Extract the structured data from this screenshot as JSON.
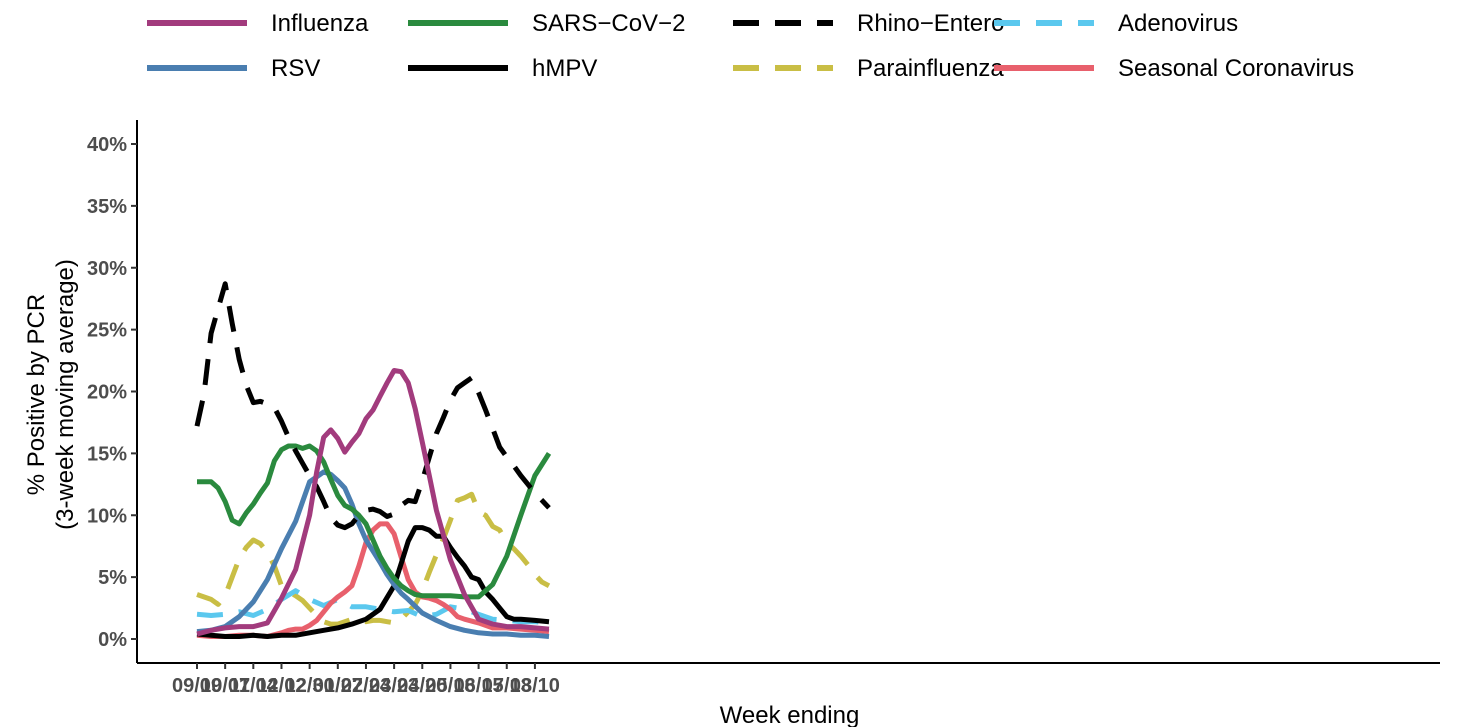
{
  "chart_data": {
    "type": "line",
    "title": "",
    "xlabel": "Week ending",
    "ylabel": "% Positive by PCR",
    "ylabel_sub": "(3-week moving average)",
    "x_ticks": [
      "09/09",
      "10/07",
      "11/04",
      "12/02",
      "12/30",
      "01/27",
      "02/24",
      "03/23",
      "04/20",
      "05/18",
      "06/15",
      "07/13",
      "08/10"
    ],
    "y_ticks": [
      "0%",
      "5%",
      "10%",
      "15%",
      "20%",
      "25%",
      "30%",
      "35%",
      "40%"
    ],
    "ylim": [
      0,
      41
    ],
    "x_unit": "weeks since 09/09",
    "xlim": [
      -1,
      50
    ],
    "grid": false,
    "legend_position": "top",
    "series": [
      {
        "name": "Influenza",
        "color": "#A23B7D",
        "dash": "solid",
        "x": [
          0,
          2,
          4,
          6,
          8,
          10,
          12,
          14,
          16,
          17,
          18,
          19,
          20,
          21,
          22,
          23,
          24,
          25,
          26,
          27,
          28,
          29,
          30,
          31,
          32,
          33,
          34,
          36,
          38,
          40,
          42,
          44,
          46,
          48,
          50
        ],
        "values": [
          0.4,
          0.7,
          0.9,
          1.0,
          1.0,
          1.3,
          3.3,
          5.6,
          10.0,
          13.5,
          16.3,
          16.9,
          16.2,
          15.1,
          15.9,
          16.6,
          17.8,
          18.5,
          19.6,
          20.7,
          21.7,
          21.6,
          20.7,
          18.6,
          15.9,
          13.2,
          10.4,
          6.4,
          3.6,
          1.6,
          1.2,
          1.0,
          1.0,
          0.9,
          0.8
        ]
      },
      {
        "name": "SARS−CoV−2",
        "color": "#2A8A3E",
        "dash": "solid",
        "x": [
          0,
          2,
          3,
          4,
          5,
          6,
          7,
          8,
          9,
          10,
          11,
          12,
          13,
          14,
          15,
          16,
          17,
          18,
          19,
          20,
          21,
          22,
          23,
          24,
          25,
          26,
          27,
          28,
          29,
          30,
          31,
          32,
          34,
          36,
          38,
          40,
          42,
          44,
          46,
          48,
          50
        ],
        "values": [
          12.7,
          12.7,
          12.2,
          11.1,
          9.6,
          9.3,
          10.2,
          10.9,
          11.8,
          12.6,
          14.4,
          15.3,
          15.6,
          15.6,
          15.4,
          15.6,
          15.2,
          14.3,
          12.9,
          11.6,
          10.8,
          10.5,
          10.0,
          9.3,
          8.0,
          6.7,
          5.7,
          4.9,
          4.3,
          3.9,
          3.6,
          3.5,
          3.5,
          3.5,
          3.4,
          3.4,
          4.4,
          6.7,
          10.0,
          13.2,
          15.0
        ]
      },
      {
        "name": "Rhino−Entero",
        "color": "#000000",
        "dash": "dashed",
        "x": [
          0,
          1,
          2,
          3,
          4,
          5,
          6,
          7,
          8,
          9,
          10,
          11,
          12,
          13,
          14,
          15,
          16,
          17,
          18,
          19,
          20,
          21,
          22,
          23,
          24,
          25,
          26,
          27,
          28,
          29,
          30,
          31,
          32,
          33,
          34,
          35,
          36,
          37,
          38,
          39,
          40,
          41,
          42,
          43,
          44,
          45,
          46,
          47,
          48,
          49,
          50
        ],
        "values": [
          17.2,
          19.8,
          24.7,
          26.7,
          28.7,
          25.5,
          22.6,
          20.5,
          19.1,
          19.2,
          19.0,
          18.7,
          17.6,
          16.3,
          15.2,
          14.2,
          13.2,
          12.3,
          11.1,
          9.8,
          9.2,
          9.0,
          9.3,
          10.0,
          10.4,
          10.5,
          10.3,
          9.9,
          10.1,
          10.8,
          11.2,
          11.1,
          12.8,
          14.7,
          16.6,
          17.9,
          19.3,
          20.3,
          20.7,
          21.1,
          19.9,
          18.5,
          17.0,
          15.5,
          14.7,
          14.0,
          13.2,
          12.5,
          11.8,
          11.2,
          10.6
        ]
      },
      {
        "name": "Adenovirus",
        "color": "#5BC8EE",
        "dash": "dashed",
        "x": [
          0,
          2,
          4,
          6,
          8,
          10,
          12,
          14,
          16,
          18,
          20,
          22,
          24,
          26,
          28,
          30,
          32,
          34,
          36,
          38,
          40,
          42,
          44,
          46,
          48,
          50
        ],
        "values": [
          2.0,
          1.9,
          2.0,
          2.2,
          1.9,
          2.4,
          3.2,
          3.9,
          3.2,
          2.7,
          3.2,
          2.6,
          2.6,
          2.4,
          2.2,
          2.3,
          1.8,
          2.0,
          2.6,
          2.4,
          2.0,
          1.6,
          1.5,
          1.4,
          1.4,
          1.3
        ]
      },
      {
        "name": "RSV",
        "color": "#4A7EB0",
        "dash": "solid",
        "x": [
          0,
          2,
          4,
          6,
          8,
          10,
          12,
          14,
          16,
          18,
          19,
          20,
          21,
          22,
          23,
          24,
          25,
          26,
          27,
          28,
          29,
          30,
          32,
          34,
          36,
          38,
          40,
          42,
          44,
          46,
          48,
          50
        ],
        "values": [
          0.6,
          0.7,
          1.0,
          1.8,
          3.0,
          4.8,
          7.3,
          9.5,
          12.7,
          13.5,
          13.3,
          12.8,
          12.2,
          10.9,
          9.3,
          8.0,
          7.1,
          6.2,
          5.2,
          4.4,
          3.7,
          3.2,
          2.1,
          1.5,
          1.0,
          0.7,
          0.5,
          0.4,
          0.4,
          0.3,
          0.3,
          0.2
        ]
      },
      {
        "name": "hMPV",
        "color": "#000000",
        "dash": "solid",
        "x": [
          0,
          2,
          4,
          6,
          8,
          10,
          12,
          14,
          16,
          18,
          20,
          22,
          24,
          26,
          28,
          29,
          30,
          31,
          32,
          33,
          34,
          35,
          36,
          37,
          38,
          39,
          40,
          41,
          42,
          43,
          44,
          45,
          46,
          48,
          50
        ],
        "values": [
          0.4,
          0.3,
          0.2,
          0.2,
          0.3,
          0.2,
          0.3,
          0.3,
          0.5,
          0.7,
          0.9,
          1.2,
          1.6,
          2.4,
          4.3,
          6.1,
          7.9,
          9.0,
          9.0,
          8.8,
          8.3,
          8.3,
          7.4,
          6.6,
          5.9,
          5.0,
          4.8,
          3.8,
          3.2,
          2.5,
          1.8,
          1.6,
          1.6,
          1.5,
          1.4
        ]
      },
      {
        "name": "Parainfluenza",
        "color": "#C9BE45",
        "dash": "dashed",
        "x": [
          0,
          2,
          3,
          4,
          5,
          6,
          7,
          8,
          9,
          10,
          11,
          12,
          13,
          14,
          15,
          16,
          17,
          18,
          19,
          20,
          21,
          22,
          23,
          24,
          25,
          26,
          27,
          28,
          29,
          30,
          31,
          32,
          33,
          34,
          35,
          36,
          37,
          38,
          39,
          40,
          41,
          42,
          43,
          44,
          45,
          46,
          47,
          48,
          49,
          50
        ],
        "values": [
          3.6,
          3.2,
          2.8,
          3.5,
          5.0,
          6.5,
          7.4,
          8.0,
          7.7,
          7.0,
          5.9,
          4.3,
          3.8,
          3.5,
          3.1,
          2.5,
          1.9,
          1.4,
          1.2,
          1.2,
          1.4,
          1.6,
          1.5,
          1.4,
          1.5,
          1.5,
          1.4,
          1.3,
          1.6,
          2.2,
          2.8,
          3.9,
          5.4,
          6.8,
          8.1,
          9.6,
          11.2,
          11.4,
          11.7,
          10.3,
          10.0,
          9.1,
          8.8,
          7.8,
          7.3,
          6.7,
          6.0,
          5.2,
          4.6,
          4.3
        ]
      },
      {
        "name": "Seasonal Coronavirus",
        "color": "#E8606C",
        "dash": "solid",
        "x": [
          0,
          2,
          4,
          6,
          8,
          10,
          12,
          13,
          14,
          15,
          16,
          17,
          18,
          19,
          20,
          21,
          22,
          23,
          24,
          25,
          26,
          27,
          28,
          29,
          30,
          31,
          32,
          33,
          34,
          35,
          36,
          37,
          38,
          40,
          42,
          44,
          46,
          48,
          50
        ],
        "values": [
          0.3,
          0.2,
          0.2,
          0.3,
          0.3,
          0.2,
          0.5,
          0.7,
          0.8,
          0.8,
          1.1,
          1.5,
          2.2,
          2.9,
          3.4,
          3.8,
          4.3,
          5.9,
          7.8,
          8.8,
          9.3,
          9.3,
          8.5,
          6.6,
          4.8,
          3.8,
          3.4,
          3.3,
          3.1,
          2.8,
          2.4,
          1.8,
          1.6,
          1.3,
          0.9,
          0.9,
          0.8,
          0.7,
          0.6
        ]
      }
    ]
  }
}
